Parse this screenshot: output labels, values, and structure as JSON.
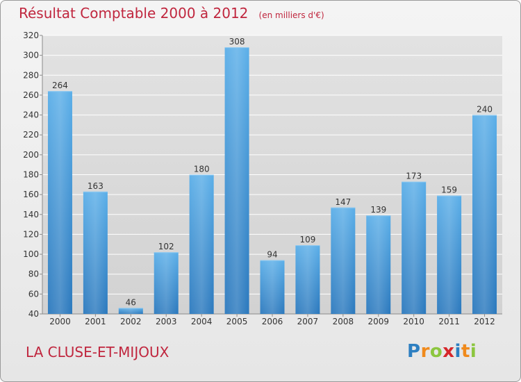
{
  "title": "Résultat Comptable 2000 à 2012",
  "subtitle": "(en milliers d'€)",
  "commune": "LA CLUSE-ET-MIJOUX",
  "logo": {
    "letters": [
      "P",
      "r",
      "o",
      "x",
      "i",
      "t",
      "i"
    ],
    "colors": [
      "#2d7fc1",
      "#f08a1c",
      "#8cc63f",
      "#d6262a",
      "#2d7fc1",
      "#f08a1c",
      "#8cc63f"
    ]
  },
  "chart_data": {
    "type": "bar",
    "title": "Résultat Comptable 2000 à 2012",
    "subtitle": "(en milliers d'€)",
    "xlabel": "",
    "ylabel": "",
    "categories": [
      "2000",
      "2001",
      "2002",
      "2003",
      "2004",
      "2005",
      "2006",
      "2007",
      "2008",
      "2009",
      "2010",
      "2011",
      "2012"
    ],
    "values": [
      264,
      163,
      46,
      102,
      180,
      308,
      94,
      109,
      147,
      139,
      173,
      159,
      240
    ],
    "ylim": [
      40,
      320
    ],
    "yticks": [
      40,
      60,
      80,
      100,
      120,
      140,
      160,
      180,
      200,
      220,
      240,
      260,
      280,
      300,
      320
    ],
    "grid": true,
    "bar_color": "#3d8fd5"
  }
}
